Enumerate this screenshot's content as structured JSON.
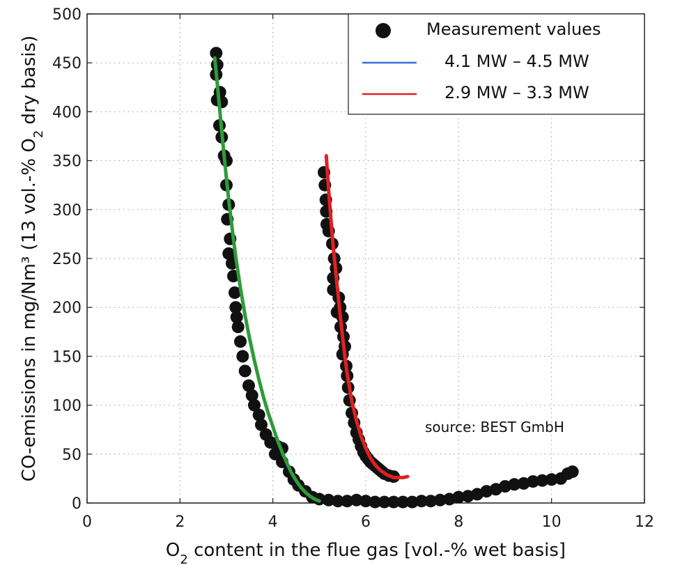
{
  "chart_data": {
    "type": "scatter",
    "xlabel_main": "O",
    "xlabel_sub": "2",
    "xlabel_rest": " content in the flue gas [vol.-% wet basis]",
    "ylabel_main": "CO-emissions in mg/Nm³ (13 vol.-% O",
    "ylabel_sub": "2",
    "ylabel_rest": " dry basis)",
    "xlim": [
      0,
      12
    ],
    "ylim": [
      0,
      500
    ],
    "xticks": [
      "0",
      "2",
      "4",
      "6",
      "8",
      "10",
      "12"
    ],
    "yticks": [
      "0",
      "50",
      "100",
      "150",
      "200",
      "250",
      "300",
      "350",
      "400",
      "450",
      "500"
    ],
    "grid": true,
    "legend_position": "top-right",
    "annotation": "source: BEST GmbH",
    "measurements": {
      "name": "Measurement values",
      "color": "#111111",
      "points": [
        [
          2.78,
          460
        ],
        [
          2.8,
          448
        ],
        [
          2.78,
          438
        ],
        [
          2.8,
          412
        ],
        [
          2.86,
          420
        ],
        [
          2.9,
          410
        ],
        [
          2.85,
          386
        ],
        [
          2.9,
          374
        ],
        [
          2.95,
          355
        ],
        [
          3.0,
          350
        ],
        [
          3.0,
          325
        ],
        [
          3.05,
          305
        ],
        [
          3.02,
          290
        ],
        [
          3.08,
          270
        ],
        [
          3.05,
          255
        ],
        [
          3.12,
          245
        ],
        [
          3.15,
          232
        ],
        [
          3.18,
          215
        ],
        [
          3.2,
          200
        ],
        [
          3.22,
          190
        ],
        [
          3.25,
          180
        ],
        [
          3.3,
          165
        ],
        [
          3.35,
          150
        ],
        [
          3.4,
          135
        ],
        [
          3.48,
          120
        ],
        [
          3.55,
          110
        ],
        [
          3.6,
          100
        ],
        [
          3.7,
          90
        ],
        [
          3.75,
          80
        ],
        [
          3.85,
          70
        ],
        [
          3.95,
          62
        ],
        [
          4.1,
          58
        ],
        [
          4.2,
          56
        ],
        [
          4.05,
          50
        ],
        [
          4.2,
          42
        ],
        [
          4.35,
          32
        ],
        [
          4.45,
          24
        ],
        [
          4.55,
          18
        ],
        [
          4.7,
          12
        ],
        [
          4.85,
          6
        ],
        [
          5.0,
          4
        ],
        [
          5.2,
          3
        ],
        [
          5.4,
          2
        ],
        [
          5.6,
          2
        ],
        [
          5.8,
          3
        ],
        [
          6.0,
          2
        ],
        [
          6.2,
          1
        ],
        [
          6.4,
          1
        ],
        [
          6.6,
          1
        ],
        [
          6.8,
          1
        ],
        [
          7.0,
          1
        ],
        [
          7.2,
          2
        ],
        [
          7.4,
          2
        ],
        [
          7.6,
          3
        ],
        [
          7.8,
          4
        ],
        [
          8.0,
          6
        ],
        [
          8.2,
          7
        ],
        [
          8.4,
          9
        ],
        [
          8.6,
          12
        ],
        [
          8.8,
          14
        ],
        [
          9.0,
          17
        ],
        [
          9.2,
          19
        ],
        [
          9.4,
          20
        ],
        [
          9.6,
          22
        ],
        [
          9.8,
          23
        ],
        [
          10.0,
          24
        ],
        [
          10.2,
          25
        ],
        [
          10.35,
          30
        ],
        [
          10.45,
          32
        ],
        [
          5.1,
          338
        ],
        [
          5.12,
          325
        ],
        [
          5.14,
          310
        ],
        [
          5.15,
          298
        ],
        [
          5.16,
          285
        ],
        [
          5.2,
          278
        ],
        [
          5.28,
          265
        ],
        [
          5.32,
          250
        ],
        [
          5.36,
          240
        ],
        [
          5.3,
          230
        ],
        [
          5.3,
          218
        ],
        [
          5.42,
          210
        ],
        [
          5.45,
          200
        ],
        [
          5.38,
          195
        ],
        [
          5.5,
          190
        ],
        [
          5.46,
          180
        ],
        [
          5.52,
          170
        ],
        [
          5.55,
          160
        ],
        [
          5.5,
          152
        ],
        [
          5.58,
          140
        ],
        [
          5.6,
          130
        ],
        [
          5.62,
          118
        ],
        [
          5.65,
          105
        ],
        [
          5.7,
          92
        ],
        [
          5.75,
          82
        ],
        [
          5.8,
          72
        ],
        [
          5.85,
          65
        ],
        [
          5.9,
          58
        ],
        [
          5.95,
          52
        ],
        [
          6.0,
          48
        ],
        [
          6.05,
          45
        ],
        [
          6.1,
          42
        ],
        [
          6.15,
          40
        ],
        [
          6.2,
          38
        ],
        [
          6.25,
          36
        ],
        [
          6.3,
          34
        ],
        [
          6.35,
          32
        ],
        [
          6.4,
          30
        ],
        [
          6.5,
          28
        ],
        [
          6.6,
          27
        ]
      ]
    },
    "series": [
      {
        "name": "4.1 MW – 4.5 MW",
        "color": "#3a6fd8",
        "points": []
      },
      {
        "name": "2.9 MW – 3.3 MW",
        "color": "#e02020",
        "points": [
          [
            5.15,
            355
          ],
          [
            5.2,
            320
          ],
          [
            5.25,
            290
          ],
          [
            5.3,
            262
          ],
          [
            5.35,
            238
          ],
          [
            5.4,
            215
          ],
          [
            5.45,
            192
          ],
          [
            5.5,
            170
          ],
          [
            5.55,
            150
          ],
          [
            5.6,
            132
          ],
          [
            5.65,
            118
          ],
          [
            5.7,
            104
          ],
          [
            5.8,
            84
          ],
          [
            5.9,
            68
          ],
          [
            6.0,
            56
          ],
          [
            6.1,
            46
          ],
          [
            6.2,
            39
          ],
          [
            6.3,
            34
          ],
          [
            6.45,
            29
          ],
          [
            6.6,
            26
          ],
          [
            6.8,
            26
          ],
          [
            6.9,
            27
          ]
        ]
      },
      {
        "name": "",
        "color": "#2e9b3a",
        "points": [
          [
            2.75,
            455
          ],
          [
            2.8,
            430
          ],
          [
            2.85,
            405
          ],
          [
            2.9,
            380
          ],
          [
            2.95,
            355
          ],
          [
            3.0,
            332
          ],
          [
            3.05,
            310
          ],
          [
            3.1,
            290
          ],
          [
            3.15,
            270
          ],
          [
            3.2,
            252
          ],
          [
            3.25,
            236
          ],
          [
            3.3,
            220
          ],
          [
            3.4,
            192
          ],
          [
            3.5,
            168
          ],
          [
            3.6,
            146
          ],
          [
            3.7,
            126
          ],
          [
            3.8,
            108
          ],
          [
            3.9,
            92
          ],
          [
            4.0,
            78
          ],
          [
            4.1,
            64
          ],
          [
            4.2,
            52
          ],
          [
            4.3,
            41
          ],
          [
            4.4,
            31
          ],
          [
            4.5,
            23
          ],
          [
            4.6,
            16
          ],
          [
            4.7,
            11
          ],
          [
            4.8,
            7
          ],
          [
            4.9,
            4
          ],
          [
            5.0,
            2
          ]
        ]
      }
    ]
  }
}
